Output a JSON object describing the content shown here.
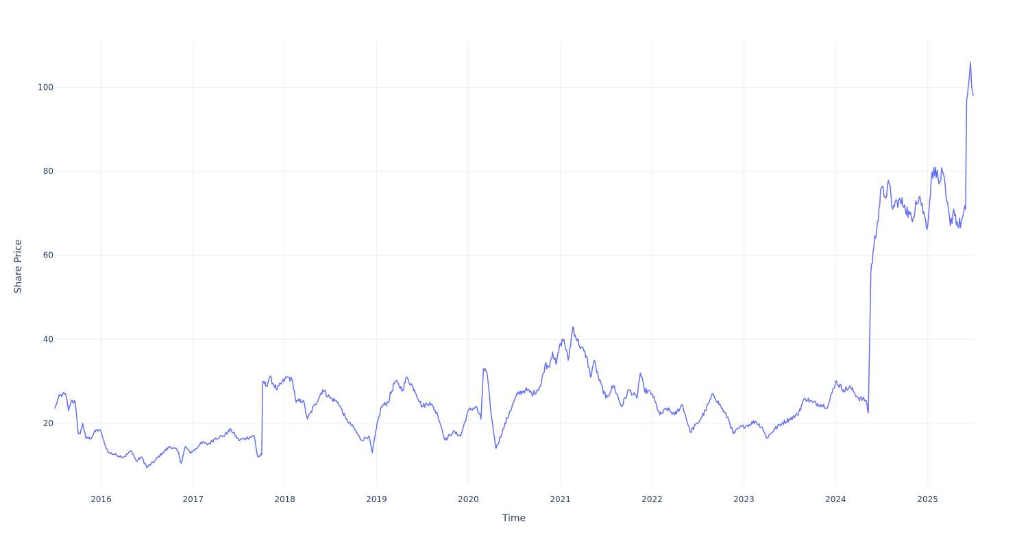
{
  "chart_data": {
    "type": "line",
    "title": "",
    "xlabel": "Time",
    "ylabel": "Share Price",
    "x_axis_type": "date",
    "xlim": [
      "2015-07-01",
      "2025-07-01"
    ],
    "ylim": [
      5,
      111
    ],
    "x_ticks": [
      "2016-01-01",
      "2017-01-01",
      "2018-01-01",
      "2019-01-01",
      "2020-01-01",
      "2021-01-01",
      "2022-01-01",
      "2023-01-01",
      "2024-01-01",
      "2025-01-01"
    ],
    "x_tick_labels": [
      "2016",
      "2017",
      "2018",
      "2019",
      "2020",
      "2021",
      "2022",
      "2023",
      "2024",
      "2025"
    ],
    "y_ticks": [
      20,
      40,
      60,
      80,
      100
    ],
    "y_tick_labels": [
      "20",
      "40",
      "60",
      "80",
      "100"
    ],
    "grid": true,
    "legend": false,
    "line_color": "#636efa",
    "grid_color": "#ebf0f8",
    "text_color": "#2a3f5f",
    "series": [
      {
        "values": [
          [
            "2015-07-01",
            23.5
          ],
          [
            "2015-07-15",
            26
          ],
          [
            "2015-08-01",
            27
          ],
          [
            "2015-08-15",
            26.5
          ],
          [
            "2015-08-25",
            23
          ],
          [
            "2015-09-05",
            25.5
          ],
          [
            "2015-09-20",
            25
          ],
          [
            "2015-10-01",
            18
          ],
          [
            "2015-10-10",
            17.5
          ],
          [
            "2015-10-20",
            20
          ],
          [
            "2015-11-01",
            16.5
          ],
          [
            "2015-11-20",
            16.5
          ],
          [
            "2015-12-15",
            18.5
          ],
          [
            "2016-01-01",
            18
          ],
          [
            "2016-01-15",
            15
          ],
          [
            "2016-02-01",
            13
          ],
          [
            "2016-03-01",
            12.5
          ],
          [
            "2016-04-01",
            12
          ],
          [
            "2016-05-01",
            13.5
          ],
          [
            "2016-05-20",
            11
          ],
          [
            "2016-06-10",
            12
          ],
          [
            "2016-07-01",
            9.5
          ],
          [
            "2016-08-01",
            11
          ],
          [
            "2016-09-01",
            13
          ],
          [
            "2016-10-01",
            14.5
          ],
          [
            "2016-11-01",
            13.5
          ],
          [
            "2016-11-15",
            10.5
          ],
          [
            "2016-12-01",
            14.5
          ],
          [
            "2016-12-20",
            13
          ],
          [
            "2017-01-15",
            14
          ],
          [
            "2017-02-01",
            15.5
          ],
          [
            "2017-03-01",
            15
          ],
          [
            "2017-04-01",
            16.5
          ],
          [
            "2017-05-01",
            17
          ],
          [
            "2017-06-01",
            18.5
          ],
          [
            "2017-07-01",
            16
          ],
          [
            "2017-08-01",
            16.5
          ],
          [
            "2017-09-01",
            17
          ],
          [
            "2017-09-15",
            12
          ],
          [
            "2017-10-01",
            12.5
          ],
          [
            "2017-10-05",
            30
          ],
          [
            "2017-10-20",
            29
          ],
          [
            "2017-11-01",
            31
          ],
          [
            "2017-12-01",
            28
          ],
          [
            "2018-01-01",
            30.5
          ],
          [
            "2018-01-15",
            31
          ],
          [
            "2018-02-01",
            30
          ],
          [
            "2018-02-15",
            25
          ],
          [
            "2018-03-15",
            25.5
          ],
          [
            "2018-04-01",
            21
          ],
          [
            "2018-05-01",
            24.5
          ],
          [
            "2018-06-01",
            28
          ],
          [
            "2018-07-01",
            26
          ],
          [
            "2018-08-01",
            25
          ],
          [
            "2018-09-01",
            21
          ],
          [
            "2018-10-01",
            19
          ],
          [
            "2018-11-01",
            16
          ],
          [
            "2018-12-01",
            17
          ],
          [
            "2018-12-15",
            13
          ],
          [
            "2019-01-01",
            19
          ],
          [
            "2019-01-20",
            24
          ],
          [
            "2019-02-15",
            25
          ],
          [
            "2019-03-15",
            30
          ],
          [
            "2019-04-15",
            28
          ],
          [
            "2019-05-01",
            31
          ],
          [
            "2019-06-01",
            28
          ],
          [
            "2019-07-01",
            24
          ],
          [
            "2019-08-01",
            25
          ],
          [
            "2019-09-01",
            22
          ],
          [
            "2019-10-01",
            16
          ],
          [
            "2019-11-01",
            18
          ],
          [
            "2019-12-01",
            17
          ],
          [
            "2020-01-01",
            23
          ],
          [
            "2020-02-01",
            24
          ],
          [
            "2020-02-20",
            21
          ],
          [
            "2020-03-01",
            33
          ],
          [
            "2020-03-15",
            32
          ],
          [
            "2020-04-01",
            22
          ],
          [
            "2020-04-20",
            14
          ],
          [
            "2020-05-15",
            18
          ],
          [
            "2020-06-15",
            23
          ],
          [
            "2020-07-15",
            27
          ],
          [
            "2020-08-15",
            28
          ],
          [
            "2020-09-15",
            27
          ],
          [
            "2020-10-15",
            29
          ],
          [
            "2020-11-01",
            34
          ],
          [
            "2020-11-15",
            33.5
          ],
          [
            "2020-12-01",
            37
          ],
          [
            "2020-12-15",
            34
          ],
          [
            "2021-01-01",
            39
          ],
          [
            "2021-01-15",
            40
          ],
          [
            "2021-02-01",
            35
          ],
          [
            "2021-02-20",
            43
          ],
          [
            "2021-03-01",
            41
          ],
          [
            "2021-03-15",
            39
          ],
          [
            "2021-04-15",
            36
          ],
          [
            "2021-05-01",
            31
          ],
          [
            "2021-05-15",
            35
          ],
          [
            "2021-06-01",
            31
          ],
          [
            "2021-07-01",
            26
          ],
          [
            "2021-08-01",
            29
          ],
          [
            "2021-09-01",
            24
          ],
          [
            "2021-10-01",
            28
          ],
          [
            "2021-11-01",
            26
          ],
          [
            "2021-11-15",
            32
          ],
          [
            "2021-12-01",
            28
          ],
          [
            "2022-01-01",
            27
          ],
          [
            "2022-02-01",
            22
          ],
          [
            "2022-03-01",
            23.5
          ],
          [
            "2022-04-01",
            22
          ],
          [
            "2022-05-01",
            24.5
          ],
          [
            "2022-06-01",
            18
          ],
          [
            "2022-07-01",
            20
          ],
          [
            "2022-08-01",
            23
          ],
          [
            "2022-09-01",
            27
          ],
          [
            "2022-10-01",
            24
          ],
          [
            "2022-11-01",
            21
          ],
          [
            "2022-11-20",
            17.5
          ],
          [
            "2022-12-15",
            19
          ],
          [
            "2023-01-15",
            19.5
          ],
          [
            "2023-02-15",
            20.5
          ],
          [
            "2023-03-15",
            19
          ],
          [
            "2023-04-01",
            16.5
          ],
          [
            "2023-05-01",
            18.5
          ],
          [
            "2023-06-01",
            20
          ],
          [
            "2023-07-01",
            21
          ],
          [
            "2023-08-01",
            22
          ],
          [
            "2023-09-01",
            26
          ],
          [
            "2023-10-01",
            25
          ],
          [
            "2023-11-01",
            24.5
          ],
          [
            "2023-12-01",
            24
          ],
          [
            "2024-01-01",
            30
          ],
          [
            "2024-02-01",
            28
          ],
          [
            "2024-03-01",
            28.5
          ],
          [
            "2024-04-01",
            26
          ],
          [
            "2024-05-01",
            25.5
          ],
          [
            "2024-05-10",
            22.5
          ],
          [
            "2024-05-20",
            56
          ],
          [
            "2024-06-01",
            62
          ],
          [
            "2024-06-15",
            68
          ],
          [
            "2024-07-01",
            76
          ],
          [
            "2024-07-15",
            74
          ],
          [
            "2024-08-01",
            77
          ],
          [
            "2024-08-15",
            71
          ],
          [
            "2024-09-01",
            73
          ],
          [
            "2024-10-01",
            72
          ],
          [
            "2024-11-01",
            68
          ],
          [
            "2024-11-15",
            73
          ],
          [
            "2024-12-01",
            74
          ],
          [
            "2024-12-20",
            69
          ],
          [
            "2025-01-01",
            67
          ],
          [
            "2025-01-15",
            78
          ],
          [
            "2025-02-01",
            81
          ],
          [
            "2025-02-15",
            77
          ],
          [
            "2025-03-01",
            80
          ],
          [
            "2025-03-15",
            74
          ],
          [
            "2025-04-01",
            67
          ],
          [
            "2025-04-15",
            71
          ],
          [
            "2025-05-01",
            67
          ],
          [
            "2025-05-15",
            68
          ],
          [
            "2025-06-01",
            71
          ],
          [
            "2025-06-05",
            97
          ],
          [
            "2025-06-15",
            102
          ],
          [
            "2025-06-20",
            106
          ],
          [
            "2025-06-25",
            100
          ],
          [
            "2025-07-01",
            98
          ]
        ]
      }
    ]
  }
}
